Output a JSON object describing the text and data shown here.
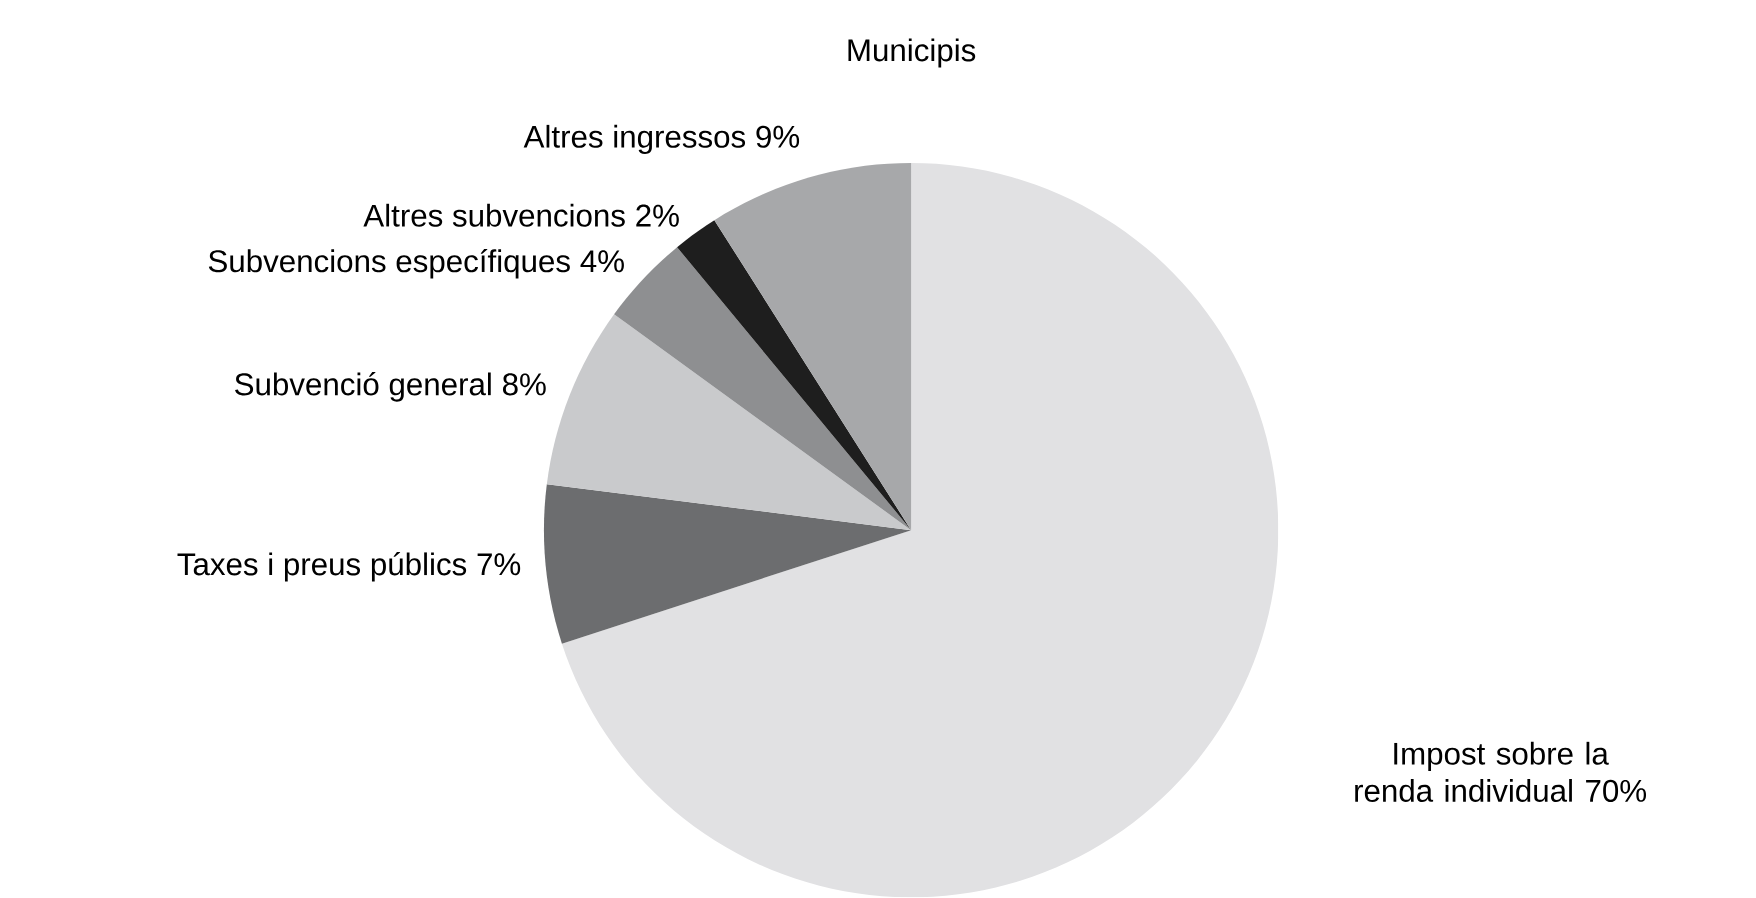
{
  "chart_data": {
    "type": "pie",
    "title": "Municipis",
    "categories": [
      "Impost sobre la renda individual",
      "Taxes i preus públics",
      "Subvenció general",
      "Subvencions específiques",
      "Altres subvencions",
      "Altres ingressos"
    ],
    "values": [
      70,
      7,
      8,
      4,
      2,
      9
    ],
    "value_labels": [
      "70%",
      "7%",
      "8%",
      "4%",
      "2%",
      "9%"
    ],
    "colors": [
      "#e1e1e3",
      "#6c6d6f",
      "#c9cacc",
      "#8e8f91",
      "#1e1e1e",
      "#a7a8aa"
    ]
  }
}
